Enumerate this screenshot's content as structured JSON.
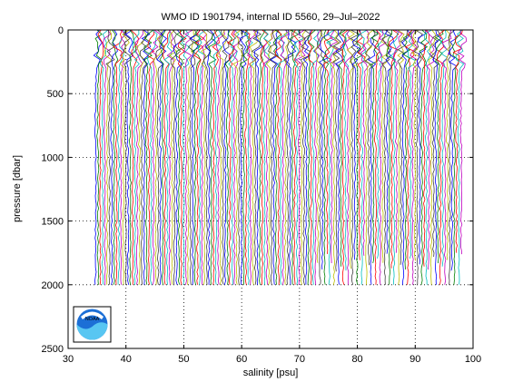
{
  "chart_data": {
    "type": "line",
    "title": "WMO ID 1901794, internal ID 5560, 29–Jul–2022",
    "xlabel": "salinity [psu]",
    "ylabel": "pressure [dbar]",
    "xlim": [
      30,
      100
    ],
    "ylim": [
      0,
      2500
    ],
    "y_reversed": true,
    "grid": true,
    "xticks": [
      "30",
      "40",
      "50",
      "60",
      "70",
      "80",
      "90",
      "100"
    ],
    "yticks": [
      "0",
      "500",
      "1000",
      "1500",
      "2000",
      "2500"
    ],
    "series_colors": [
      "#0000ff",
      "#008000",
      "#ff0000",
      "#00bfbf",
      "#bf00bf",
      "#bfbf00",
      "#404040"
    ],
    "profiles": {
      "description_free": true,
      "first_offset_psu": 35.0,
      "offset_step_psu": 0.4,
      "count": 160,
      "deep_max_pressure_dbar": 2000,
      "shallow_max_pressure_dbar": 1900,
      "shallow_start_offset_psu": 73.0
    }
  },
  "logo": {
    "text": "NOAA"
  }
}
